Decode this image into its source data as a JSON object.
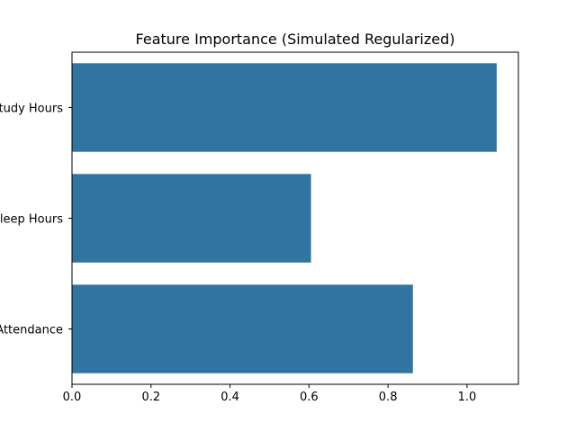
{
  "chart_data": {
    "type": "bar",
    "orientation": "horizontal",
    "title": "Feature Importance (Simulated Regularized)",
    "xlabel": "",
    "ylabel": "",
    "categories": [
      "Study Hours",
      "Sleep Hours",
      "Attendance"
    ],
    "values": [
      1.075,
      0.605,
      0.863
    ],
    "xlim": [
      0,
      1.13
    ],
    "xticks": [
      "0.0",
      "0.2",
      "0.4",
      "0.6",
      "0.8",
      "1.0"
    ],
    "grid": false,
    "bar_color": "#3274a1"
  }
}
